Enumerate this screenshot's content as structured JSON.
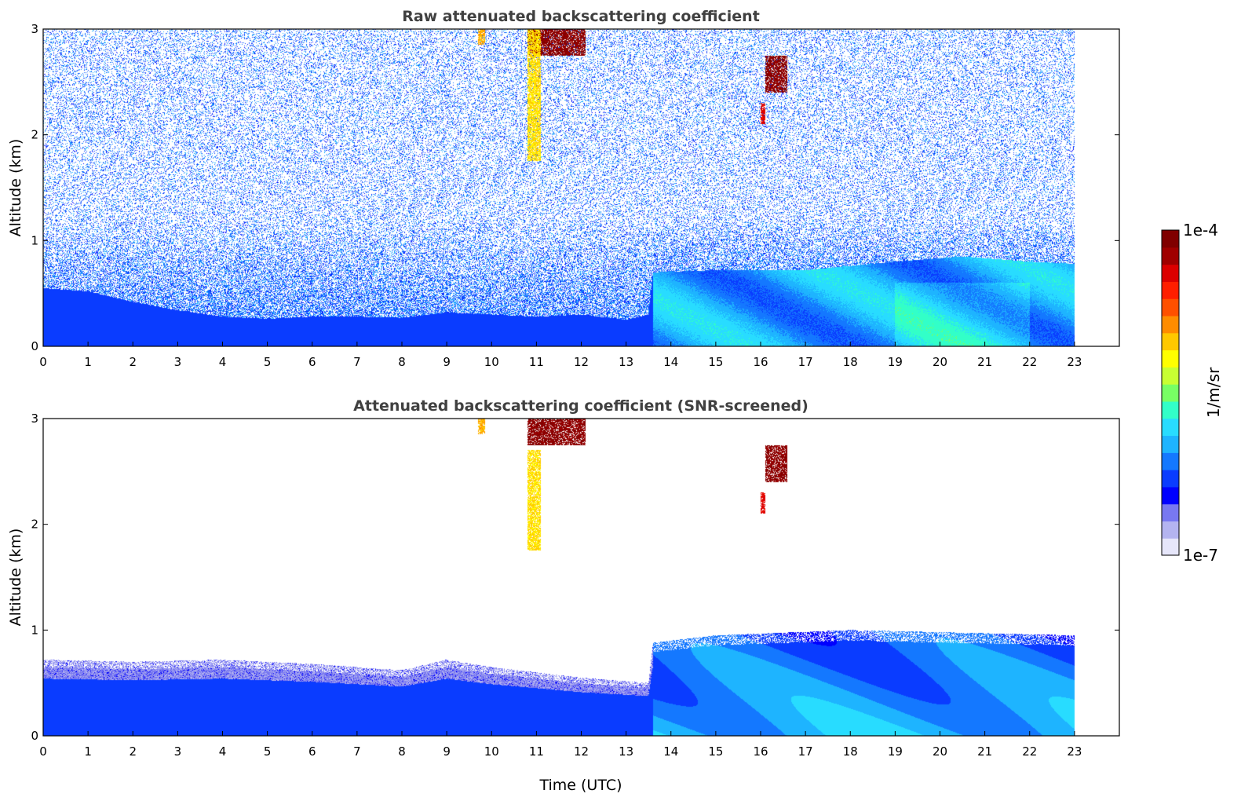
{
  "chart_data": [
    {
      "type": "heatmap",
      "title": "Raw attenuated backscattering coefficient",
      "xlabel": "",
      "ylabel": "Altitude (km)",
      "xlim": [
        0,
        24
      ],
      "ylim": [
        0,
        3
      ],
      "xticks": [
        0,
        1,
        2,
        3,
        4,
        5,
        6,
        7,
        8,
        9,
        10,
        11,
        12,
        13,
        14,
        15,
        16,
        17,
        18,
        19,
        20,
        21,
        22,
        23
      ],
      "yticks": [
        0,
        1,
        2,
        3
      ],
      "data_extent_hours": [
        0,
        23
      ],
      "noise_level": 0.22,
      "boundary_layer": [
        {
          "t": 0,
          "top_km": 0.55
        },
        {
          "t": 1,
          "top_km": 0.52
        },
        {
          "t": 2,
          "top_km": 0.42
        },
        {
          "t": 3,
          "top_km": 0.34
        },
        {
          "t": 4,
          "top_km": 0.28
        },
        {
          "t": 5,
          "top_km": 0.26
        },
        {
          "t": 6,
          "top_km": 0.28
        },
        {
          "t": 7,
          "top_km": 0.28
        },
        {
          "t": 8,
          "top_km": 0.27
        },
        {
          "t": 9,
          "top_km": 0.32
        },
        {
          "t": 10,
          "top_km": 0.3
        },
        {
          "t": 11,
          "top_km": 0.28
        },
        {
          "t": 12,
          "top_km": 0.3
        },
        {
          "t": 13,
          "top_km": 0.25
        },
        {
          "t": 13.5,
          "top_km": 0.3
        },
        {
          "t": 13.6,
          "top_km": 0.7
        },
        {
          "t": 15,
          "top_km": 0.72
        },
        {
          "t": 17,
          "top_km": 0.72
        },
        {
          "t": 19,
          "top_km": 0.8
        },
        {
          "t": 20.5,
          "top_km": 0.85
        },
        {
          "t": 22,
          "top_km": 0.8
        },
        {
          "t": 23,
          "top_km": 0.78
        }
      ],
      "clouds": [
        {
          "t0": 10.8,
          "t1": 12.1,
          "z0_km": 2.75,
          "z1_km": 3.0,
          "intensity": 1.0
        },
        {
          "t0": 16.1,
          "t1": 16.6,
          "z0_km": 2.4,
          "z1_km": 2.75,
          "intensity": 1.0
        },
        {
          "t0": 16.0,
          "t1": 16.1,
          "z0_km": 2.1,
          "z1_km": 2.3,
          "intensity": 0.9
        },
        {
          "t0": 10.8,
          "t1": 11.1,
          "z0_km": 1.75,
          "z1_km": 3.0,
          "intensity": 0.65
        },
        {
          "t0": 9.7,
          "t1": 9.85,
          "z0_km": 2.85,
          "z1_km": 3.0,
          "intensity": 0.7
        }
      ]
    },
    {
      "type": "heatmap",
      "title": "Attenuated backscattering coefficient (SNR-screened)",
      "xlabel": "Time (UTC)",
      "ylabel": "Altitude (km)",
      "xlim": [
        0,
        24
      ],
      "ylim": [
        0,
        3
      ],
      "xticks": [
        0,
        1,
        2,
        3,
        4,
        5,
        6,
        7,
        8,
        9,
        10,
        11,
        12,
        13,
        14,
        15,
        16,
        17,
        18,
        19,
        20,
        21,
        22,
        23
      ],
      "yticks": [
        0,
        1,
        2,
        3
      ],
      "data_extent_hours": [
        0,
        23
      ],
      "screened_layer_top": [
        {
          "t": 0,
          "top_km": 0.72
        },
        {
          "t": 2,
          "top_km": 0.7
        },
        {
          "t": 4,
          "top_km": 0.72
        },
        {
          "t": 6,
          "top_km": 0.68
        },
        {
          "t": 8,
          "top_km": 0.62
        },
        {
          "t": 9,
          "top_km": 0.72
        },
        {
          "t": 10,
          "top_km": 0.65
        },
        {
          "t": 12,
          "top_km": 0.55
        },
        {
          "t": 13.5,
          "top_km": 0.5
        },
        {
          "t": 13.6,
          "top_km": 0.88
        },
        {
          "t": 15,
          "top_km": 0.95
        },
        {
          "t": 18,
          "top_km": 1.0
        },
        {
          "t": 20,
          "top_km": 0.98
        },
        {
          "t": 23,
          "top_km": 0.95
        }
      ],
      "clouds": [
        {
          "t0": 10.8,
          "t1": 12.1,
          "z0_km": 2.75,
          "z1_km": 3.0,
          "intensity": 1.0
        },
        {
          "t0": 16.1,
          "t1": 16.6,
          "z0_km": 2.4,
          "z1_km": 2.75,
          "intensity": 1.0
        },
        {
          "t0": 16.0,
          "t1": 16.1,
          "z0_km": 2.1,
          "z1_km": 2.3,
          "intensity": 0.9
        },
        {
          "t0": 10.8,
          "t1": 11.1,
          "z0_km": 1.75,
          "z1_km": 2.7,
          "intensity": 0.65
        },
        {
          "t0": 9.7,
          "t1": 9.85,
          "z0_km": 2.85,
          "z1_km": 3.0,
          "intensity": 0.7
        }
      ]
    }
  ],
  "colorbar": {
    "label": "1/m/sr",
    "max_label": "1e-4",
    "min_label": "1e-7",
    "scale": "log",
    "colors": [
      "#e6e6fa",
      "#b4b4f0",
      "#7878f0",
      "#0000ff",
      "#0a3cff",
      "#1478ff",
      "#1eb4ff",
      "#28dcff",
      "#32ffc8",
      "#78ff64",
      "#c8ff32",
      "#ffff00",
      "#ffc800",
      "#ff8c00",
      "#ff5000",
      "#ff1e00",
      "#dc0000",
      "#a00000",
      "#800000"
    ]
  }
}
